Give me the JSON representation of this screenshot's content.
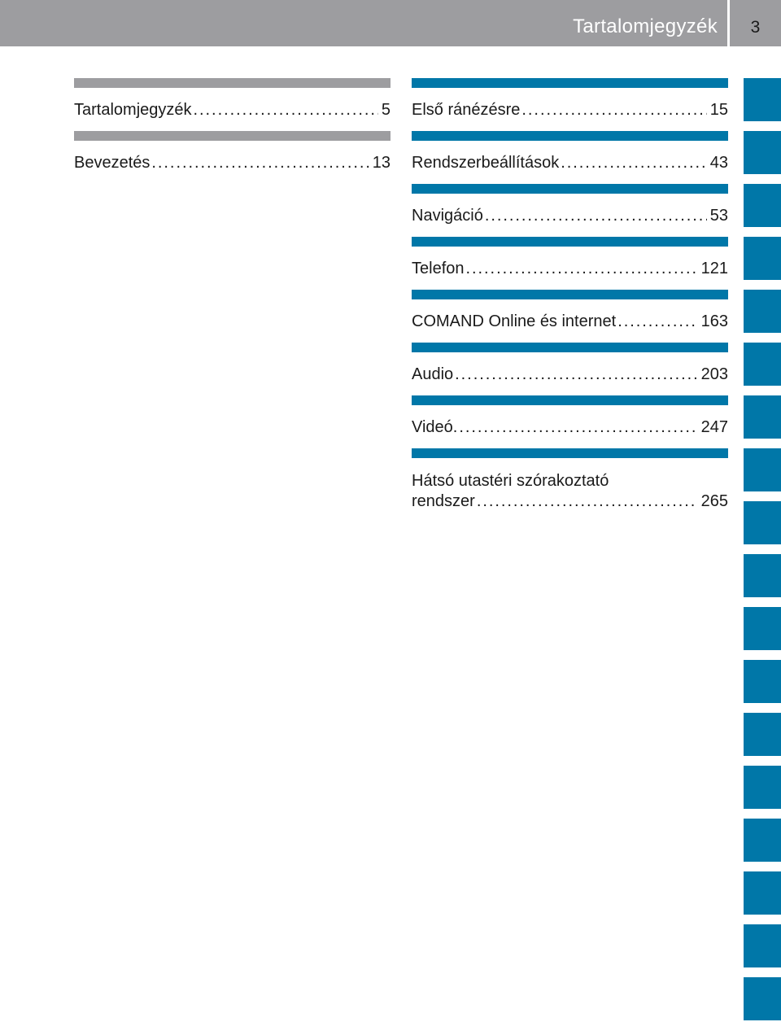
{
  "header": {
    "title": "Tartalomjegyzék",
    "page_number": "3"
  },
  "left_column": [
    {
      "label": "Tartalomjegyzék",
      "page": "5"
    },
    {
      "label": "Bevezetés",
      "page": "13"
    }
  ],
  "right_column": [
    {
      "label": "Első ránézésre",
      "page": "15"
    },
    {
      "label": "Rendszerbeállítások",
      "page": "43"
    },
    {
      "label": "Navigáció",
      "page": "53"
    },
    {
      "label": "Telefon",
      "page": "121"
    },
    {
      "label": "COMAND Online és internet",
      "page": "163"
    },
    {
      "label": "Audio",
      "page": "203"
    },
    {
      "label": "Videó.",
      "page": "247"
    },
    {
      "label_line1": "Hátsó utastéri szórakoztató",
      "label": "rendszer",
      "page": "265"
    }
  ],
  "colors": {
    "header_gray": "#9d9da0",
    "accent_blue": "#0077a8"
  },
  "tab_count": 18
}
